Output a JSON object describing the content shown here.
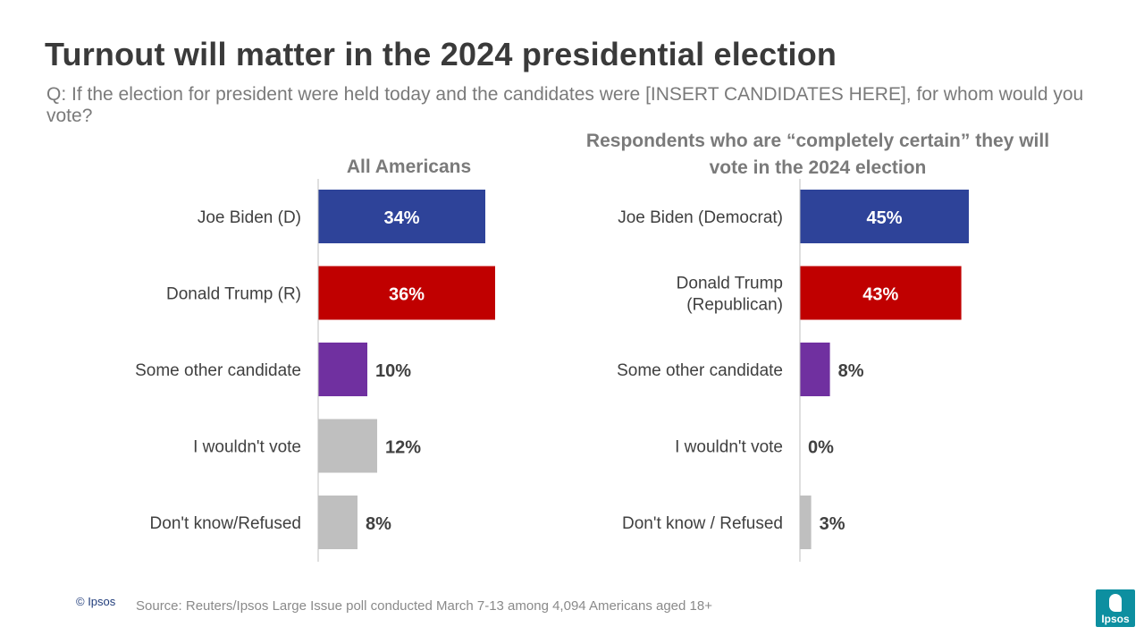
{
  "title": "Turnout will matter in the 2024 presidential election",
  "question": "Q: If the election for president were held today and the candidates were [INSERT CANDIDATES  HERE], for whom would you vote?",
  "footer": {
    "copyright": "© Ipsos",
    "source": "Source: Reuters/Ipsos  Large Issue poll conducted March 7-13 among 4,094 Americans aged 18+",
    "logo_text": "Ipsos"
  },
  "colors": {
    "biden": "#2e4399",
    "trump": "#c00000",
    "other": "#7030a0",
    "neutral": "#bfbfbf",
    "axis": "#bfbfbf"
  },
  "chart_data": [
    {
      "type": "bar",
      "orientation": "horizontal",
      "title": "All Americans",
      "categories": [
        "Joe Biden (D)",
        "Donald Trump (R)",
        "Some other candidate",
        "I wouldn't vote",
        "Don't know/Refused"
      ],
      "values": [
        34,
        36,
        10,
        12,
        8
      ],
      "labels": [
        "34%",
        "36%",
        "10%",
        "12%",
        "8%"
      ],
      "bar_colors": [
        "#2e4399",
        "#c00000",
        "#7030a0",
        "#bfbfbf",
        "#bfbfbf"
      ],
      "label_inside": [
        true,
        true,
        false,
        false,
        false
      ],
      "xlim": [
        0,
        50
      ],
      "unit": "%"
    },
    {
      "type": "bar",
      "orientation": "horizontal",
      "title": "Respondents who are “completely certain” they will vote in the 2024 election",
      "categories": [
        "Joe Biden (Democrat)",
        "Donald Trump (Republican)",
        "Some other candidate",
        "I wouldn't vote",
        "Don't know / Refused"
      ],
      "category_lines": [
        [
          "Joe Biden (Democrat)"
        ],
        [
          "Donald Trump",
          "(Republican)"
        ],
        [
          "Some other candidate"
        ],
        [
          "I wouldn't vote"
        ],
        [
          "Don't know / Refused"
        ]
      ],
      "values": [
        45,
        43,
        8,
        0,
        3
      ],
      "labels": [
        "45%",
        "43%",
        "8%",
        "0%",
        "3%"
      ],
      "bar_colors": [
        "#2e4399",
        "#c00000",
        "#7030a0",
        "#bfbfbf",
        "#bfbfbf"
      ],
      "label_inside": [
        true,
        true,
        false,
        false,
        false
      ],
      "xlim": [
        0,
        50
      ],
      "unit": "%"
    }
  ]
}
